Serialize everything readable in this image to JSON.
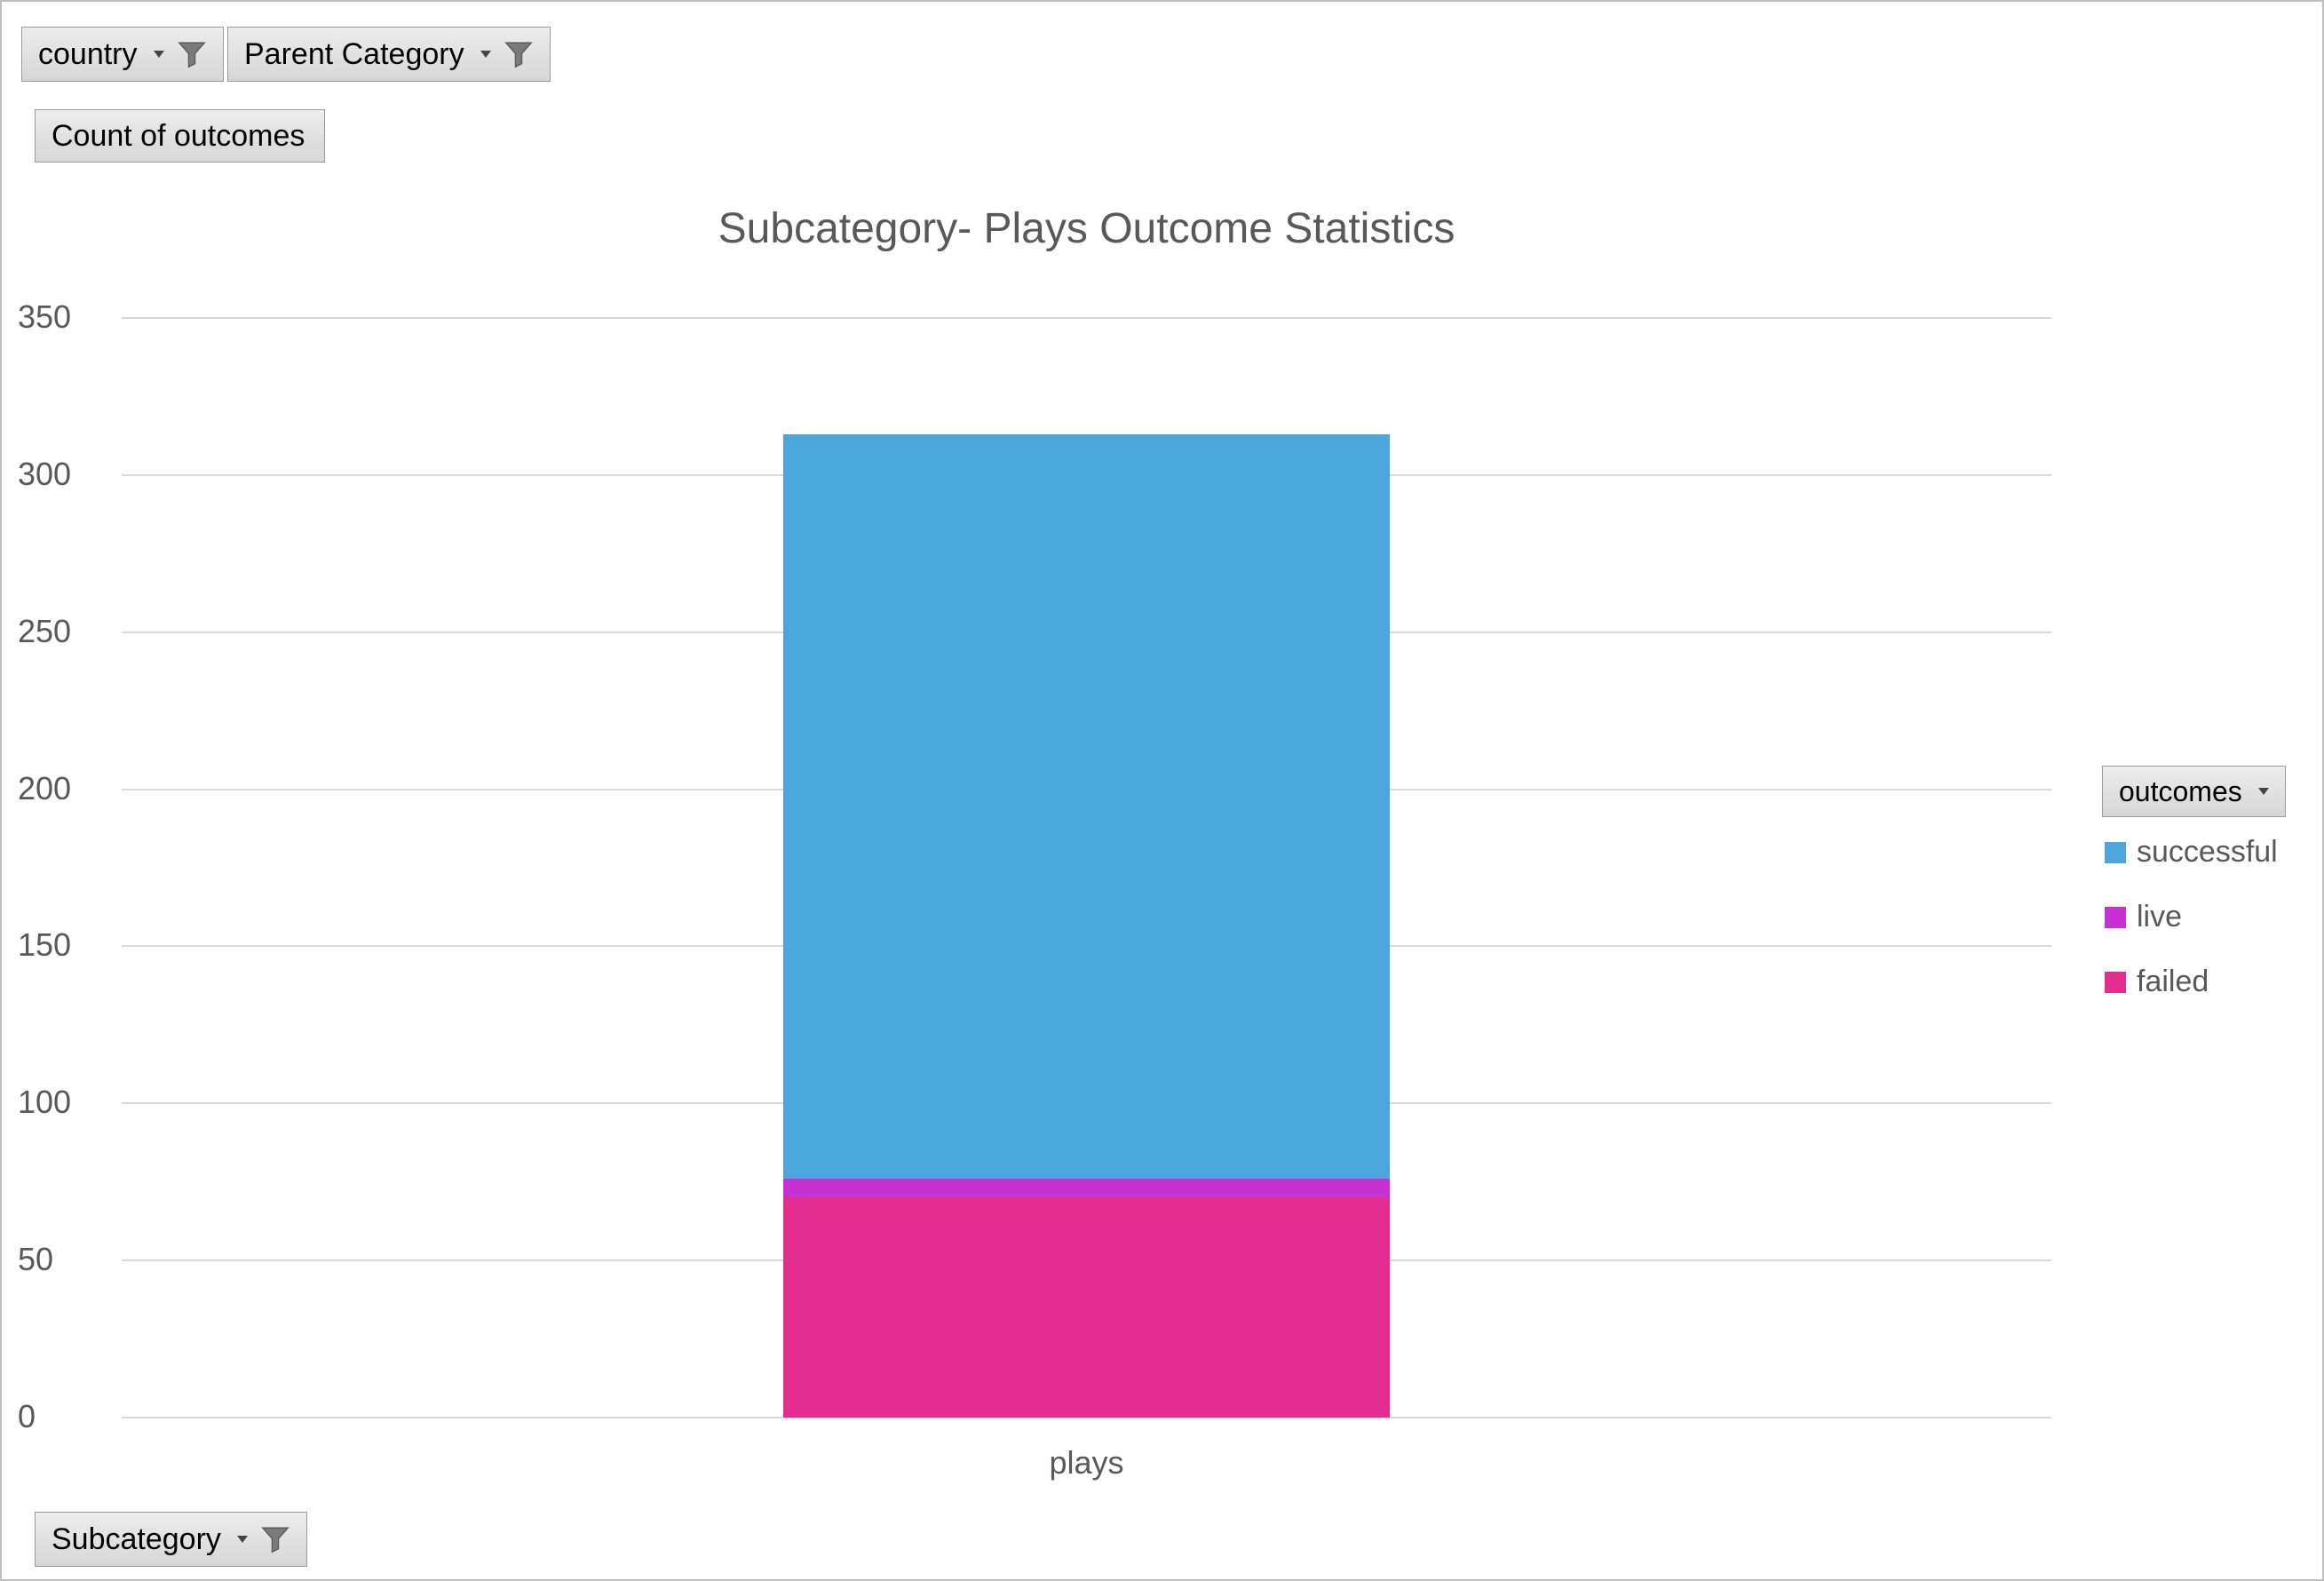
{
  "filters": {
    "country": {
      "label": "country"
    },
    "parent_category": {
      "label": "Parent Category"
    },
    "count_of_outcomes": {
      "label": "Count of outcomes"
    },
    "subcategory": {
      "label": "Subcategory"
    },
    "outcomes": {
      "label": "outcomes"
    }
  },
  "chart_data": {
    "type": "bar",
    "stacked": true,
    "title": "Subcategory- Plays Outcome Statistics",
    "categories": [
      "plays"
    ],
    "series": [
      {
        "name": "failed",
        "values": [
          70
        ],
        "color": "#E32D91"
      },
      {
        "name": "live",
        "values": [
          6
        ],
        "color": "#C832D2"
      },
      {
        "name": "successful",
        "values": [
          237
        ],
        "color": "#4BA6DC"
      }
    ],
    "legend_order": [
      "successful",
      "live",
      "failed"
    ],
    "legend_position": "right",
    "xlabel": "",
    "ylabel": "",
    "ylim": [
      0,
      350
    ],
    "ytick_step": 50,
    "yticks": [
      0,
      50,
      100,
      150,
      200,
      250,
      300,
      350
    ],
    "grid": true
  }
}
